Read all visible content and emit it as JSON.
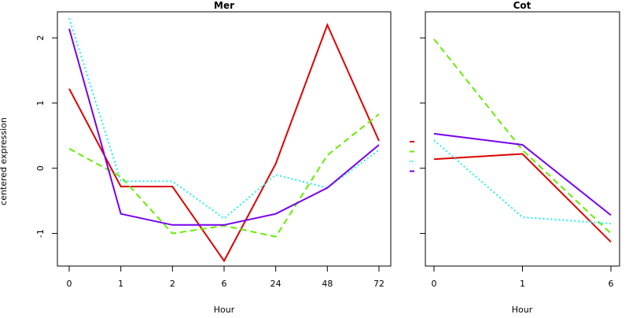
{
  "ylabel": "centered expression",
  "series_colors": [
    "#dd0000",
    "#66ee00",
    "#22eeee",
    "#7700ee"
  ],
  "series_dash": [
    "",
    "8,5",
    "2,3",
    ""
  ],
  "chart_data": [
    {
      "type": "line",
      "title": "Mer",
      "xlabel": "Hour",
      "ylabel": "centered expression",
      "categories": [
        "0",
        "1",
        "2",
        "6",
        "24",
        "48",
        "72"
      ],
      "ylim": [
        -1.5,
        2.4
      ],
      "yticks": [
        -1,
        0,
        1,
        2
      ],
      "series": [
        {
          "values": [
            1.22,
            -0.28,
            -0.28,
            -1.42,
            0.07,
            2.2,
            0.42
          ]
        },
        {
          "values": [
            0.3,
            -0.13,
            -1.0,
            -0.88,
            -1.05,
            0.2,
            0.83
          ]
        },
        {
          "values": [
            2.3,
            -0.2,
            -0.2,
            -0.77,
            -0.1,
            -0.3,
            0.28
          ]
        },
        {
          "values": [
            2.14,
            -0.7,
            -0.87,
            -0.87,
            -0.7,
            -0.3,
            0.36
          ]
        }
      ]
    },
    {
      "type": "line",
      "title": "Cot",
      "xlabel": "Hour",
      "categories": [
        "0",
        "1",
        "6"
      ],
      "ylim": [
        -1.5,
        2.4
      ],
      "yticks": [
        -1,
        0,
        1,
        2
      ],
      "series": [
        {
          "values": [
            0.14,
            0.22,
            -1.13
          ]
        },
        {
          "values": [
            1.98,
            0.28,
            -1.0
          ]
        },
        {
          "values": [
            0.43,
            -0.75,
            -0.85
          ]
        },
        {
          "values": [
            0.53,
            0.36,
            -0.72
          ]
        }
      ]
    }
  ]
}
